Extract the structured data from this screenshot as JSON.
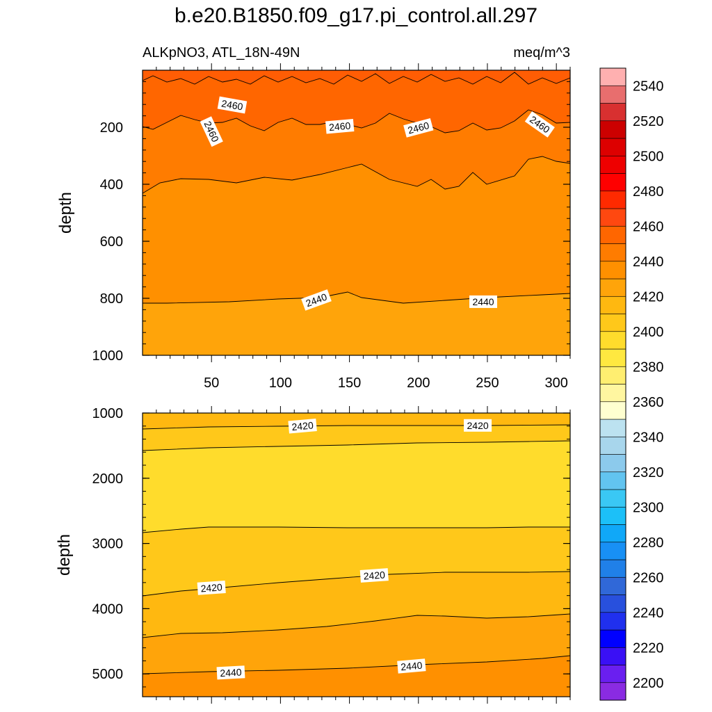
{
  "chart_data": {
    "type": "contour",
    "title": "b.e20.B1850.f09_g17.pi_control.all.297",
    "left_string": "ALKpNO3, ATL_18N-49N",
    "right_string": "meq/m^3",
    "colorbar": {
      "labels": [
        "2200",
        "2220",
        "2240",
        "2260",
        "2280",
        "2300",
        "2320",
        "2340",
        "2360",
        "2380",
        "2400",
        "2420",
        "2440",
        "2460",
        "2480",
        "2500",
        "2520",
        "2540"
      ],
      "colors_bottom_to_top": [
        "#8a2be2",
        "#6a1ff0",
        "#3a10f5",
        "#0000ff",
        "#2030ee",
        "#2850dd",
        "#3068d8",
        "#2080e8",
        "#1890f5",
        "#10a8f8",
        "#1cc0f8",
        "#3ac8f4",
        "#62c4f0",
        "#8ccaec",
        "#a8d6ec",
        "#bce2f0",
        "#ffffd0",
        "#fff6a0",
        "#ffee70",
        "#ffe840",
        "#ffdc2c",
        "#ffc81a",
        "#ffb810",
        "#ffa40a",
        "#ff9000",
        "#ff7c00",
        "#ff6600",
        "#ff4810",
        "#ff2a00",
        "#ff0000",
        "#ee0000",
        "#dd0000",
        "#cc0000",
        "#d83030",
        "#e86e6e",
        "#ffb0b0"
      ]
    },
    "panels": [
      {
        "ylabel": "depth",
        "yticks": [
          200,
          400,
          600,
          800,
          1000
        ],
        "xticks": [
          50,
          100,
          150,
          200,
          250,
          300
        ],
        "ylim": [
          1000,
          0
        ],
        "xlim": [
          0,
          310
        ],
        "contour_labels": [
          {
            "text": "2460",
            "x": 65,
            "y": 122,
            "angle": 10
          },
          {
            "text": "2460",
            "x": 50,
            "y": 215,
            "angle": 65
          },
          {
            "text": "2460",
            "x": 143,
            "y": 197,
            "angle": -5
          },
          {
            "text": "2460",
            "x": 200,
            "y": 202,
            "angle": -15
          },
          {
            "text": "2460",
            "x": 288,
            "y": 190,
            "angle": 35
          },
          {
            "text": "2440",
            "x": 126,
            "y": 806,
            "angle": -20
          },
          {
            "text": "2440",
            "x": 247,
            "y": 812,
            "angle": 0
          }
        ]
      },
      {
        "ylabel": "depth",
        "yticks": [
          1000,
          2000,
          3000,
          4000,
          5000
        ],
        "ylim": [
          5350,
          1000
        ],
        "xlim": [
          0,
          310
        ],
        "contour_labels": [
          {
            "text": "2420",
            "x": 116,
            "y": 1200,
            "angle": -5
          },
          {
            "text": "2420",
            "x": 243,
            "y": 1190,
            "angle": 0
          },
          {
            "text": "2420",
            "x": 50,
            "y": 3680,
            "angle": -4
          },
          {
            "text": "2420",
            "x": 168,
            "y": 3490,
            "angle": -4
          },
          {
            "text": "2440",
            "x": 64,
            "y": 4980,
            "angle": -3
          },
          {
            "text": "2440",
            "x": 195,
            "y": 4880,
            "angle": -5
          }
        ]
      }
    ]
  }
}
